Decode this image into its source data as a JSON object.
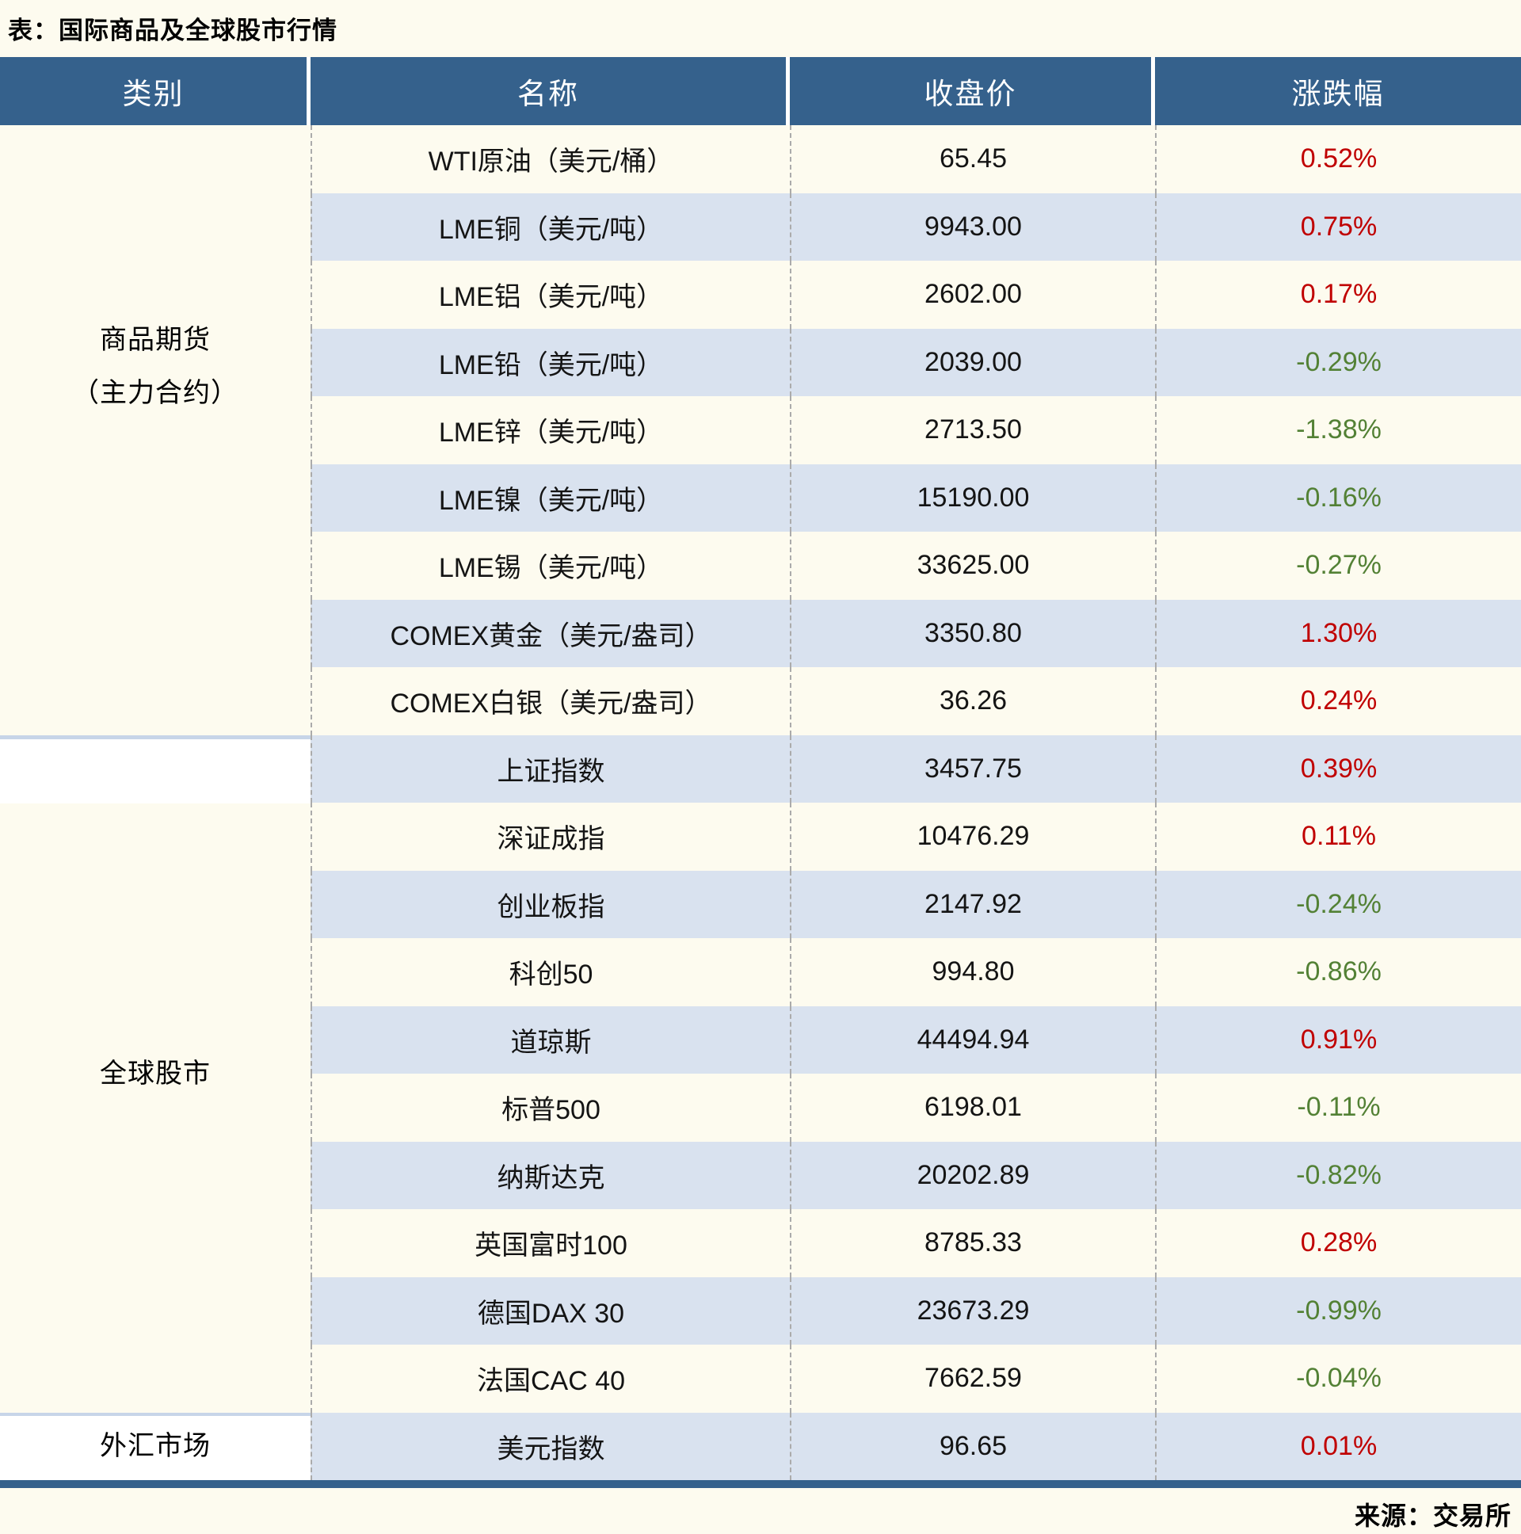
{
  "title": "表：国际商品及全球股市行情",
  "source": "来源：交易所",
  "colors": {
    "header_bg": "#35618C",
    "stripe_blue": "#D9E2EF",
    "page_cream": "#FDFBEF",
    "up_red": "#C00000",
    "down_green": "#538135",
    "section_divider_blue": "#C7D5E8",
    "dashed_grid_gray": "#ABABAB"
  },
  "chart_data": {
    "type": "table",
    "title": "表：国际商品及全球股市行情",
    "columns": [
      "类别",
      "名称",
      "收盘价",
      "涨跌幅"
    ],
    "legend_position": "none",
    "grid": "dashed-vertical",
    "source": "来源：交易所",
    "sections": [
      {
        "category": "商品期货（主力合约）",
        "category_lines": [
          "商品期货",
          "（主力合约）"
        ],
        "rows": [
          {
            "name": "WTI原油（美元/桶）",
            "close": "65.45",
            "change": "0.52%"
          },
          {
            "name": "LME铜（美元/吨）",
            "close": "9943.00",
            "change": "0.75%"
          },
          {
            "name": "LME铝（美元/吨）",
            "close": "2602.00",
            "change": "0.17%"
          },
          {
            "name": "LME铅（美元/吨）",
            "close": "2039.00",
            "change": "-0.29%"
          },
          {
            "name": "LME锌（美元/吨）",
            "close": "2713.50",
            "change": "-1.38%"
          },
          {
            "name": "LME镍（美元/吨）",
            "close": "15190.00",
            "change": "-0.16%"
          },
          {
            "name": "LME锡（美元/吨）",
            "close": "33625.00",
            "change": "-0.27%"
          },
          {
            "name": "COMEX黄金（美元/盎司）",
            "close": "3350.80",
            "change": "1.30%"
          },
          {
            "name": "COMEX白银（美元/盎司）",
            "close": "36.26",
            "change": "0.24%"
          }
        ]
      },
      {
        "category": "全球股市",
        "category_lines": [
          "全球股市"
        ],
        "rows": [
          {
            "name": "上证指数",
            "close": "3457.75",
            "change": "0.39%"
          },
          {
            "name": "深证成指",
            "close": "10476.29",
            "change": "0.11%"
          },
          {
            "name": "创业板指",
            "close": "2147.92",
            "change": "-0.24%"
          },
          {
            "name": "科创50",
            "close": "994.80",
            "change": "-0.86%"
          },
          {
            "name": "道琼斯",
            "close": "44494.94",
            "change": "0.91%"
          },
          {
            "name": "标普500",
            "close": "6198.01",
            "change": "-0.11%"
          },
          {
            "name": "纳斯达克",
            "close": "20202.89",
            "change": "-0.82%"
          },
          {
            "name": "英国富时100",
            "close": "8785.33",
            "change": "0.28%"
          },
          {
            "name": "德国DAX 30",
            "close": "23673.29",
            "change": "-0.99%"
          },
          {
            "name": "法国CAC 40",
            "close": "7662.59",
            "change": "-0.04%"
          }
        ]
      },
      {
        "category": "外汇市场",
        "category_lines": [
          "外汇市场"
        ],
        "rows": [
          {
            "name": "美元指数",
            "close": "96.65",
            "change": "0.01%"
          }
        ]
      }
    ]
  }
}
